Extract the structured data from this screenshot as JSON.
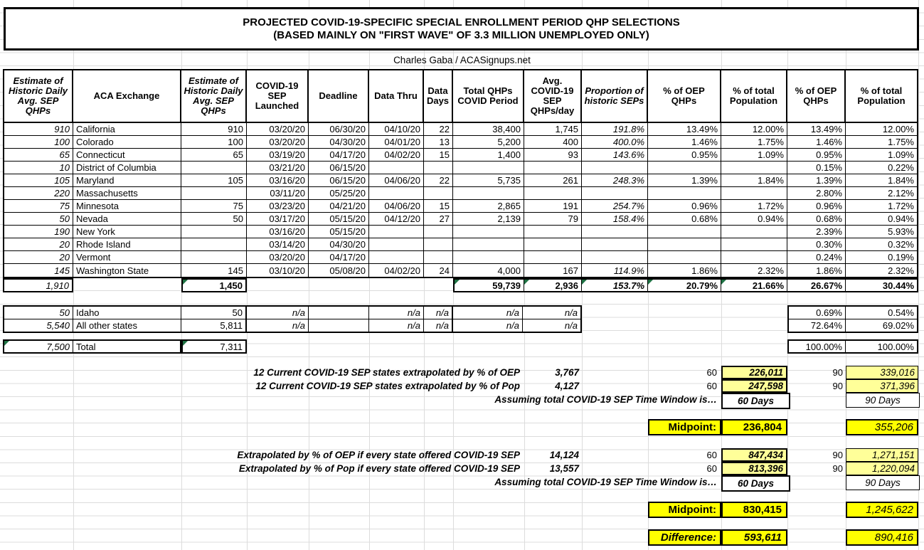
{
  "title": {
    "line1": "PROJECTED COVID-19-SPECIFIC SPECIAL ENROLLMENT PERIOD QHP SELECTIONS",
    "line2": "(BASED MAINLY ON \"FIRST WAVE\" OF 3.3 MILLION UNEMPLOYED ONLY)"
  },
  "byline": "Charles Gaba / ACASignups.net",
  "table": {
    "headers": [
      "Estimate of Historic Daily Avg. SEP QHPs",
      "ACA Exchange",
      "Estimate of Historic Daily Avg. SEP QHPs",
      "COVID-19 SEP Launched",
      "Deadline",
      "Data Thru",
      "Data Days",
      "Total QHPs COVID Period",
      "Avg. COVID-19 SEP QHPs/day",
      "Proportion of historic SEPs",
      "% of OEP QHPs",
      "% of total Population",
      "% of OEP QHPs",
      "% of total Population"
    ],
    "rows": [
      [
        "910",
        "California",
        "910",
        "03/20/20",
        "06/30/20",
        "04/10/20",
        "22",
        "38,400",
        "1,745",
        "191.8%",
        "13.49%",
        "12.00%",
        "13.49%",
        "12.00%"
      ],
      [
        "100",
        "Colorado",
        "100",
        "03/20/20",
        "04/30/20",
        "04/01/20",
        "13",
        "5,200",
        "400",
        "400.0%",
        "1.46%",
        "1.75%",
        "1.46%",
        "1.75%"
      ],
      [
        "65",
        "Connecticut",
        "65",
        "03/19/20",
        "04/17/20",
        "04/02/20",
        "15",
        "1,400",
        "93",
        "143.6%",
        "0.95%",
        "1.09%",
        "0.95%",
        "1.09%"
      ],
      [
        "10",
        "District of Columbia",
        "",
        "03/21/20",
        "06/15/20",
        "",
        "",
        "",
        "",
        "",
        "",
        "",
        "0.15%",
        "0.22%"
      ],
      [
        "105",
        "Maryland",
        "105",
        "03/16/20",
        "06/15/20",
        "04/06/20",
        "22",
        "5,735",
        "261",
        "248.3%",
        "1.39%",
        "1.84%",
        "1.39%",
        "1.84%"
      ],
      [
        "220",
        "Massachusetts",
        "",
        "03/11/20",
        "05/25/20",
        "",
        "",
        "",
        "",
        "",
        "",
        "",
        "2.80%",
        "2.12%"
      ],
      [
        "75",
        "Minnesota",
        "75",
        "03/23/20",
        "04/21/20",
        "04/06/20",
        "15",
        "2,865",
        "191",
        "254.7%",
        "0.96%",
        "1.72%",
        "0.96%",
        "1.72%"
      ],
      [
        "50",
        "Nevada",
        "50",
        "03/17/20",
        "05/15/20",
        "04/12/20",
        "27",
        "2,139",
        "79",
        "158.4%",
        "0.68%",
        "0.94%",
        "0.68%",
        "0.94%"
      ],
      [
        "190",
        "New York",
        "",
        "03/16/20",
        "05/15/20",
        "",
        "",
        "",
        "",
        "",
        "",
        "",
        "2.39%",
        "5.93%"
      ],
      [
        "20",
        "Rhode Island",
        "",
        "03/14/20",
        "04/30/20",
        "",
        "",
        "",
        "",
        "",
        "",
        "",
        "0.30%",
        "0.32%"
      ],
      [
        "20",
        "Vermont",
        "",
        "03/20/20",
        "04/17/20",
        "",
        "",
        "",
        "",
        "",
        "",
        "",
        "0.24%",
        "0.19%"
      ],
      [
        "145",
        "Washington State",
        "145",
        "03/10/20",
        "05/08/20",
        "04/02/20",
        "24",
        "4,000",
        "167",
        "114.9%",
        "1.86%",
        "2.32%",
        "1.86%",
        "2.32%"
      ]
    ],
    "totals": {
      "historic": "1,910",
      "current": "1,450",
      "right": [
        "59,739",
        "2,936",
        "153.7%",
        "20.79%",
        "21.66%",
        "26.67%",
        "30.44%"
      ]
    }
  },
  "extra": {
    "rows": [
      [
        "50",
        "Idaho",
        "50",
        "n/a",
        "",
        "n/a",
        "n/a",
        "n/a",
        "n/a"
      ],
      [
        "5,540",
        "All other states",
        "5,811",
        "n/a",
        "",
        "n/a",
        "n/a",
        "n/a",
        "n/a"
      ]
    ],
    "pcts": [
      [
        "0.69%",
        "0.54%"
      ],
      [
        "72.64%",
        "69.02%"
      ]
    ],
    "total": {
      "historic": "7,500",
      "label": "Total",
      "current": "7,311",
      "pct_oep": "100.00%",
      "pct_pop": "100.00%"
    }
  },
  "projections": {
    "block1": {
      "rows": [
        {
          "label": "12 Current COVID-19 SEP states extrapolated by % of OEP",
          "value": "3,767",
          "d60": "60",
          "v60": "226,011",
          "d90": "90",
          "v90": "339,016"
        },
        {
          "label": "12 Current COVID-19 SEP states extrapolated by % of Pop",
          "value": "4,127",
          "d60": "60",
          "v60": "247,598",
          "d90": "90",
          "v90": "371,396"
        }
      ],
      "assuming_label": "Assuming total COVID-19 SEP Time Window is…",
      "window60": "60 Days",
      "window90": "90 Days",
      "midpoint_label": "Midpoint:",
      "midpoint60": "236,804",
      "midpoint90": "355,206"
    },
    "block2": {
      "rows": [
        {
          "label": "Extrapolated by % of OEP if every state offered COVID-19 SEP",
          "value": "14,124",
          "d60": "60",
          "v60": "847,434",
          "d90": "90",
          "v90": "1,271,151"
        },
        {
          "label": "Extrapolated by % of Pop if every state offered COVID-19 SEP",
          "value": "13,557",
          "d60": "60",
          "v60": "813,396",
          "d90": "90",
          "v90": "1,220,094"
        }
      ],
      "assuming_label": "Assuming total COVID-19 SEP Time Window is…",
      "window60": "60 Days",
      "window90": "90 Days",
      "midpoint_label": "Midpoint:",
      "midpoint60": "830,415",
      "midpoint90": "1,245,622"
    },
    "difference_label": "Difference:",
    "difference60": "593,611",
    "difference90": "890,416"
  },
  "colors": {
    "pale_yellow": "#FFFF99",
    "bright_yellow": "#FFFF00",
    "flag_green": "#1F7244",
    "gridline": "#DCDCDC"
  }
}
